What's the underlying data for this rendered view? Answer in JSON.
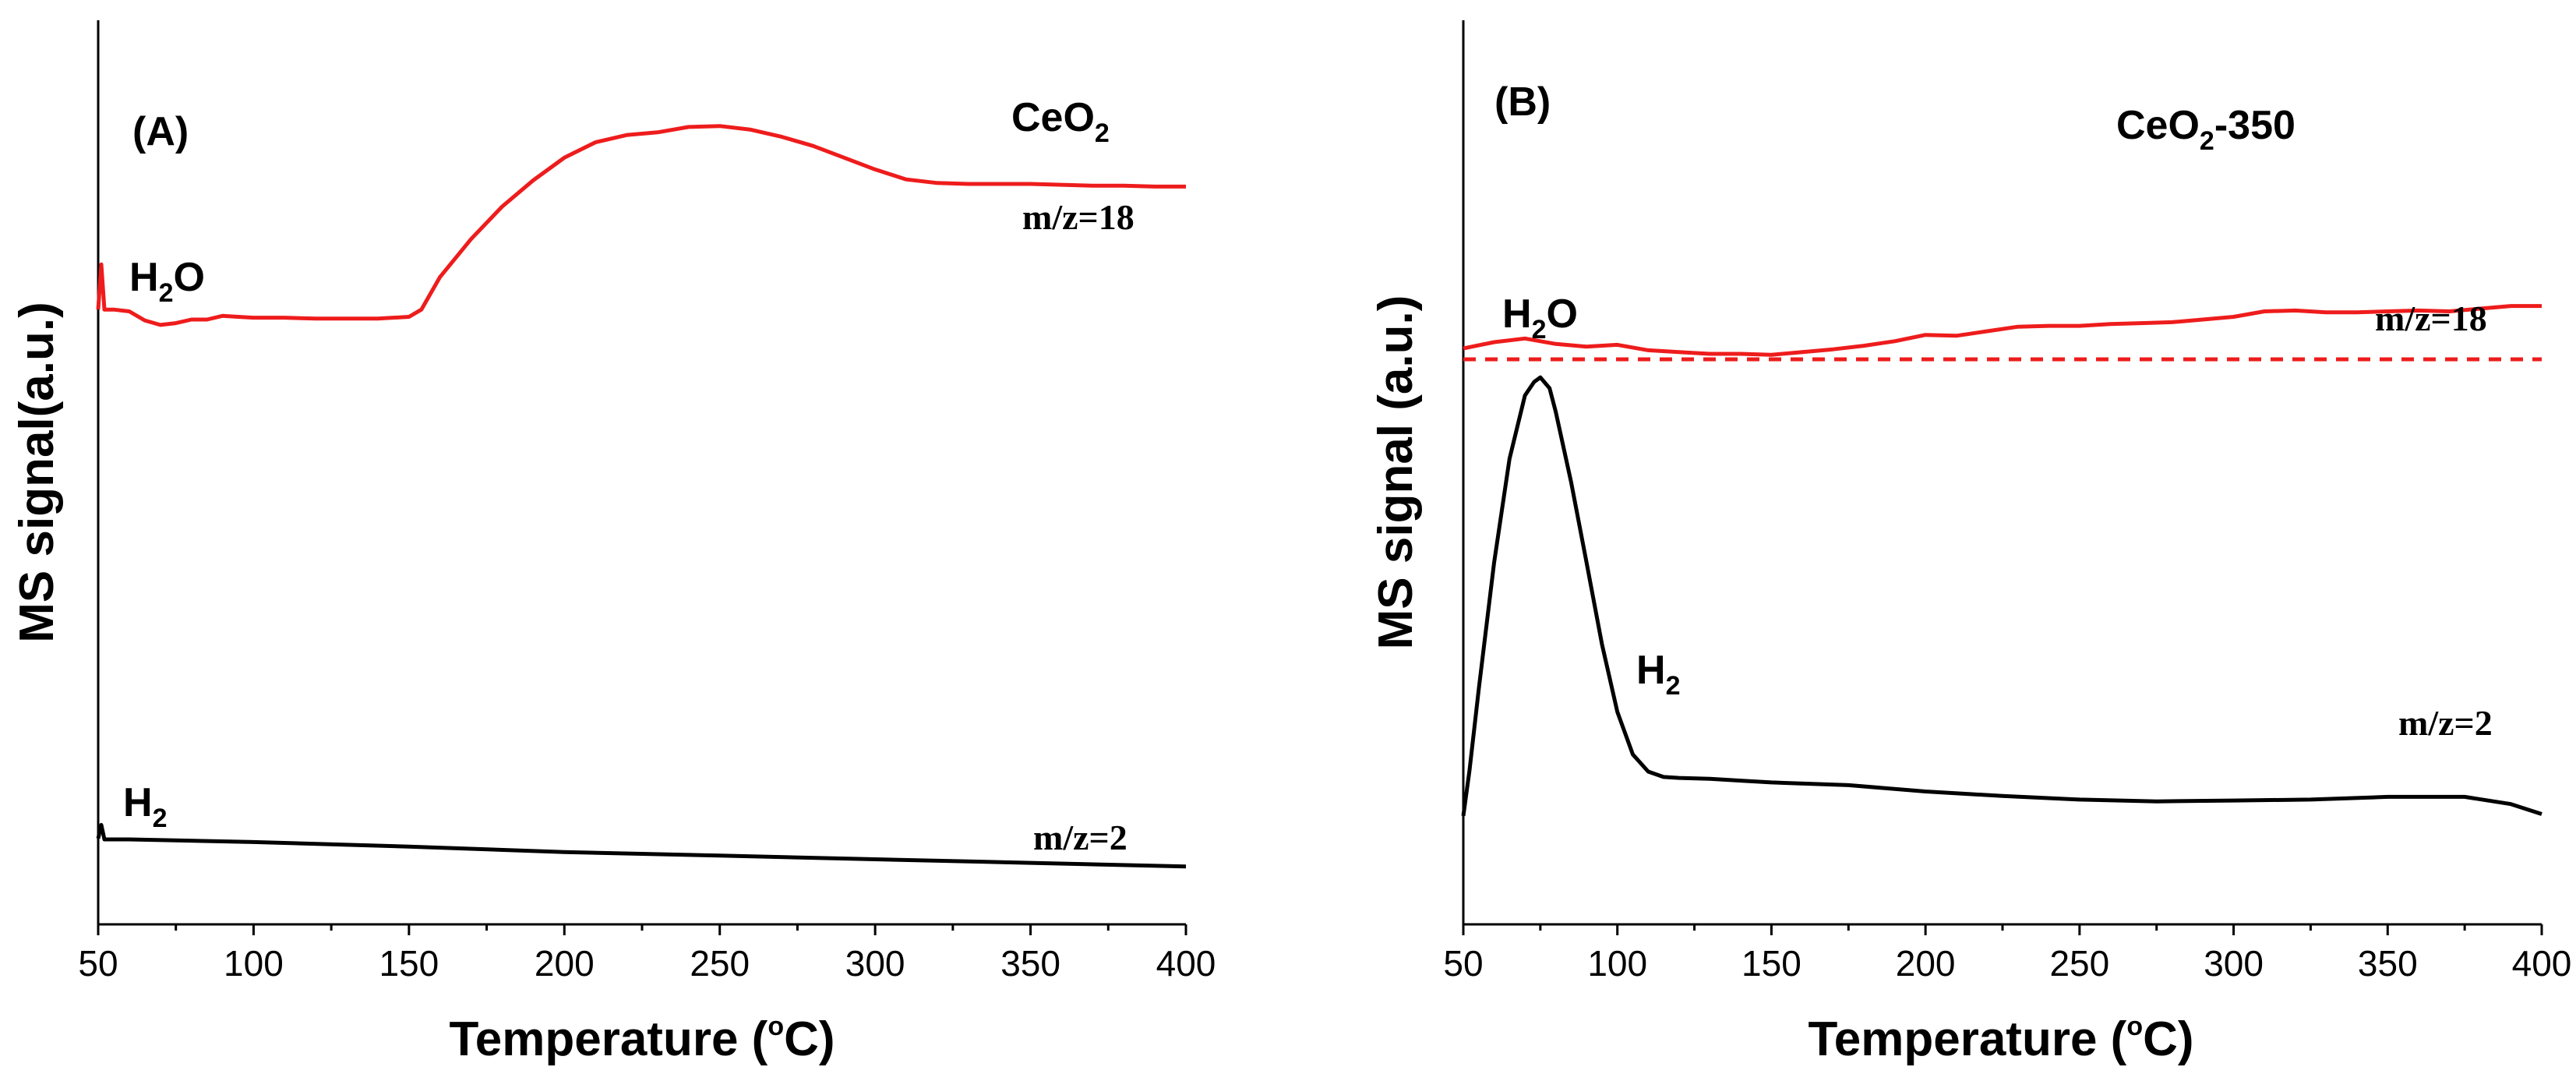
{
  "chart_data": [
    {
      "type": "line",
      "panel_label": "(A)",
      "sample": {
        "base": "CeO",
        "sub": "2",
        "tail": ""
      },
      "xlabel": {
        "prefix": "Temperature (",
        "degree": "o",
        "suffix": "C)"
      },
      "ylabel": "MS signal(a.u.)",
      "xlim": [
        50,
        400
      ],
      "ylim": [
        0,
        100
      ],
      "xticks": [
        "50",
        "100",
        "150",
        "200",
        "250",
        "300",
        "350",
        "400"
      ],
      "yticks_labeled": false,
      "series": [
        {
          "name": "H2O",
          "species": {
            "base": "H",
            "sub": "2",
            "tail": "O"
          },
          "mz": "m/z=18",
          "color": "#ee1c1c",
          "style": "solid",
          "x": [
            50,
            51,
            52,
            55,
            60,
            65,
            70,
            75,
            80,
            85,
            90,
            95,
            100,
            110,
            120,
            130,
            140,
            150,
            154,
            160,
            170,
            180,
            190,
            200,
            210,
            220,
            230,
            240,
            250,
            260,
            270,
            280,
            290,
            300,
            310,
            320,
            330,
            340,
            350,
            360,
            370,
            380,
            390,
            400
          ],
          "y": [
            68.0,
            73.0,
            68.0,
            68.0,
            67.8,
            66.8,
            66.3,
            66.5,
            66.9,
            66.9,
            67.3,
            67.2,
            67.1,
            67.1,
            67.0,
            67.0,
            67.0,
            67.2,
            68.0,
            71.6,
            75.8,
            79.4,
            82.3,
            84.8,
            86.5,
            87.3,
            87.6,
            88.2,
            88.3,
            87.9,
            87.1,
            86.1,
            84.8,
            83.5,
            82.4,
            82.0,
            81.9,
            81.9,
            81.9,
            81.8,
            81.7,
            81.7,
            81.6,
            81.6
          ]
        },
        {
          "name": "H2",
          "species": {
            "base": "H",
            "sub": "2",
            "tail": ""
          },
          "mz": "m/z=2",
          "color": "#000000",
          "style": "solid",
          "x": [
            50,
            51,
            52,
            60,
            100,
            150,
            200,
            250,
            300,
            350,
            400
          ],
          "y": [
            9.5,
            11.0,
            9.4,
            9.4,
            9.1,
            8.6,
            8.0,
            7.6,
            7.2,
            6.8,
            6.4
          ]
        }
      ]
    },
    {
      "type": "line",
      "panel_label": "(B)",
      "sample": {
        "base": "CeO",
        "sub": "2",
        "tail": "-350"
      },
      "xlabel": {
        "prefix": "Temperature (",
        "degree": "o",
        "suffix": "C)"
      },
      "ylabel": "MS signal (a.u.)",
      "xlim": [
        50,
        400
      ],
      "ylim": [
        0,
        100
      ],
      "xticks": [
        "50",
        "100",
        "150",
        "200",
        "250",
        "300",
        "350",
        "400"
      ],
      "yticks_labeled": false,
      "series": [
        {
          "name": "H2O",
          "species": {
            "base": "H",
            "sub": "2",
            "tail": "O"
          },
          "mz": "m/z=18",
          "color": "#ee1c1c",
          "style": "solid",
          "x": [
            50,
            60,
            70,
            80,
            90,
            100,
            110,
            120,
            130,
            140,
            150,
            160,
            170,
            180,
            190,
            200,
            210,
            220,
            230,
            240,
            250,
            260,
            270,
            280,
            290,
            300,
            310,
            320,
            330,
            340,
            350,
            360,
            370,
            380,
            390,
            400
          ],
          "y": [
            63.7,
            64.4,
            64.8,
            64.2,
            63.9,
            64.1,
            63.5,
            63.3,
            63.1,
            63.1,
            63.0,
            63.3,
            63.6,
            64.0,
            64.5,
            65.2,
            65.1,
            65.6,
            66.1,
            66.2,
            66.2,
            66.4,
            66.5,
            66.6,
            66.9,
            67.2,
            67.8,
            67.9,
            67.7,
            67.7,
            67.8,
            67.9,
            67.8,
            68.1,
            68.4,
            68.4
          ]
        },
        {
          "name": "H2O baseline",
          "color": "#ee1c1c",
          "style": "dashed",
          "x": [
            50,
            400
          ],
          "y": [
            62.5,
            62.5
          ]
        },
        {
          "name": "H2",
          "species": {
            "base": "H",
            "sub": "2",
            "tail": ""
          },
          "mz": "m/z=2",
          "color": "#000000",
          "style": "solid",
          "x": [
            50,
            52,
            55,
            60,
            65,
            70,
            73,
            75,
            78,
            80,
            85,
            90,
            95,
            100,
            105,
            110,
            115,
            120,
            130,
            140,
            150,
            175,
            200,
            225,
            250,
            275,
            300,
            325,
            350,
            375,
            390,
            400
          ],
          "y": [
            12.0,
            17.0,
            26.0,
            40.0,
            51.5,
            58.5,
            60.0,
            60.5,
            59.3,
            56.7,
            48.9,
            40.0,
            31.0,
            23.5,
            18.8,
            16.9,
            16.3,
            16.2,
            16.1,
            15.9,
            15.7,
            15.4,
            14.7,
            14.2,
            13.8,
            13.6,
            13.7,
            13.8,
            14.1,
            14.1,
            13.3,
            12.2
          ]
        }
      ]
    }
  ]
}
